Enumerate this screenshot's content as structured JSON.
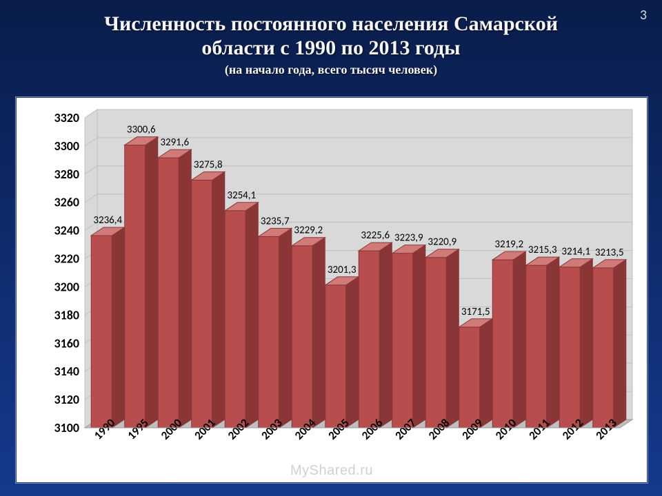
{
  "page_number": "3",
  "title_line1": "Численность постоянного населения Самарской",
  "title_line2": "области с 1990 по 2013 годы",
  "subtitle": "(на начало года, всего тысяч человек)",
  "watermark": "MyShared.ru",
  "chart": {
    "type": "bar-3d",
    "categories": [
      "1990",
      "1995",
      "2000",
      "2001",
      "2002",
      "2003",
      "2004",
      "2005",
      "2006",
      "2007",
      "2008",
      "2009",
      "2010",
      "2011",
      "2012",
      "2013"
    ],
    "values": [
      3236.4,
      3300.6,
      3291.6,
      3275.8,
      3254.1,
      3235.7,
      3229.2,
      3201.3,
      3225.6,
      3223.9,
      3220.9,
      3171.5,
      3219.2,
      3215.3,
      3214.1,
      3213.5
    ],
    "value_labels": [
      "3236,4",
      "3300,6",
      "3291,6",
      "3275,8",
      "3254,1",
      "3235,7",
      "3229,2",
      "3201,3",
      "3225,6",
      "3223,9",
      "3220,9",
      "3171,5",
      "3219,2",
      "3215,3",
      "3214,1",
      "3213,5"
    ],
    "ylim": [
      3100,
      3320
    ],
    "ytick_step": 20,
    "yticks": [
      3100,
      3120,
      3140,
      3160,
      3180,
      3200,
      3220,
      3240,
      3260,
      3280,
      3300,
      3320
    ],
    "bar_fill": "#b84d4d",
    "bar_side": "#8a3636",
    "bar_top": "#d17a7a",
    "floor_fill": "#bfbfbf",
    "floor_side": "#9a9a9a",
    "wall_fill": "#d9d9d9",
    "grid_color": "#bfbfbf",
    "background_color": "#ffffff",
    "title_fontsize": 30,
    "subtitle_fontsize": 18,
    "axis_label_fontsize": 18,
    "data_label_fontsize": 15,
    "category_label_fontsize": 17,
    "bar_width_ratio": 0.62,
    "depth_x": 18,
    "depth_y": 12
  },
  "colors": {
    "slide_bg_top": "#0a1d4a",
    "slide_bg_bottom": "#143a8c",
    "title_text": "#f5f5f5",
    "pagenum_text": "#cfd6e6"
  }
}
